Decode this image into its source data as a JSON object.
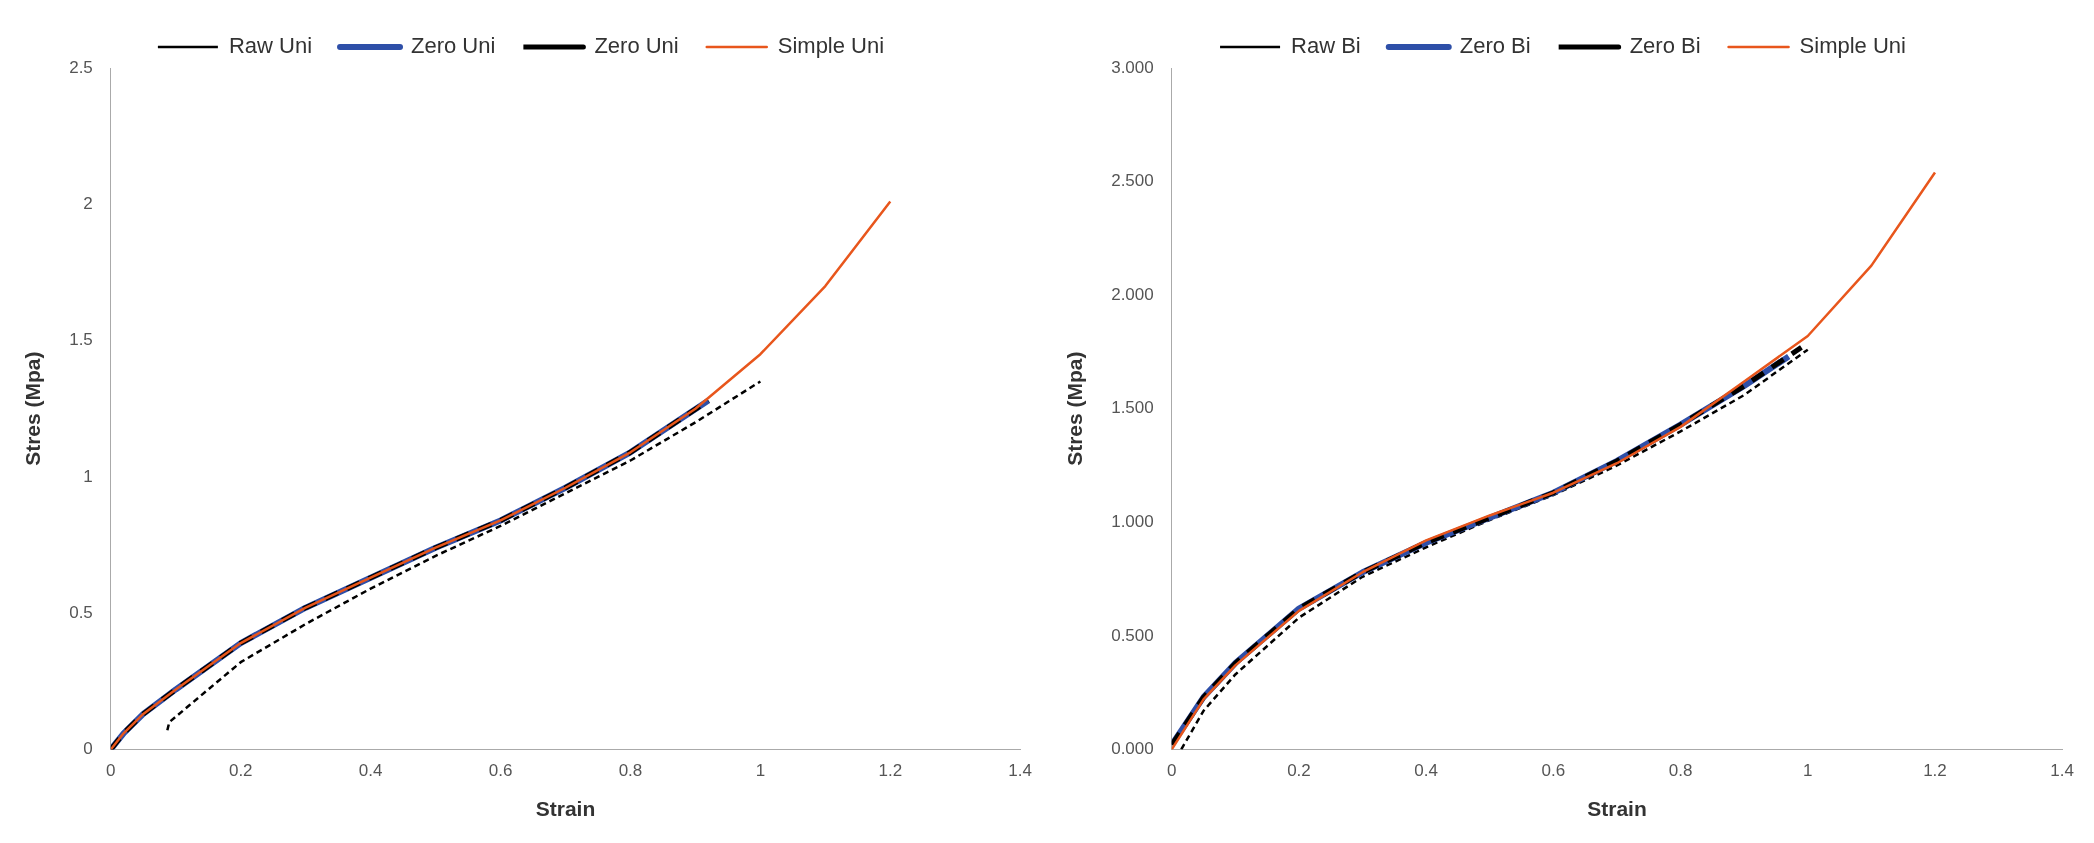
{
  "chart_data": [
    {
      "type": "line",
      "xlabel": "Strain",
      "ylabel": "Stres (Mpa)",
      "xlim": [
        0,
        1.4
      ],
      "xticks": [
        0,
        0.2,
        0.4,
        0.6,
        0.8,
        1,
        1.2,
        1.4
      ],
      "ylim": [
        0,
        2.5
      ],
      "yticks": [
        0,
        0.5,
        1,
        1.5,
        2,
        2.5
      ],
      "grid": false,
      "legend": "top",
      "marker": "none",
      "series": [
        {
          "name": "Raw Uni",
          "color": "#000000",
          "line_style": "dotted",
          "x": [
            0.087,
            0.09,
            0.12,
            0.2,
            0.3,
            0.4,
            0.5,
            0.6,
            0.7,
            0.8,
            0.9,
            1.0
          ],
          "values": [
            0.07,
            0.1,
            0.16,
            0.32,
            0.46,
            0.59,
            0.71,
            0.82,
            0.94,
            1.06,
            1.2,
            1.35
          ]
        },
        {
          "name": "Zero Uni",
          "color": "#2e4fa8",
          "line_style": "solid",
          "x": [
            0,
            0.02,
            0.05,
            0.1,
            0.2,
            0.3,
            0.4,
            0.5,
            0.6,
            0.7,
            0.8,
            0.92
          ],
          "values": [
            0,
            0.06,
            0.13,
            0.22,
            0.39,
            0.52,
            0.63,
            0.74,
            0.84,
            0.96,
            1.09,
            1.28
          ]
        },
        {
          "name": "Zero Uni",
          "color": "#000000",
          "line_style": "dashed",
          "x": [
            0,
            0.02,
            0.05,
            0.1,
            0.2,
            0.3,
            0.4,
            0.5,
            0.6,
            0.7,
            0.8,
            0.92
          ],
          "values": [
            0,
            0.06,
            0.13,
            0.22,
            0.39,
            0.52,
            0.63,
            0.74,
            0.84,
            0.96,
            1.09,
            1.28
          ]
        },
        {
          "name": "Simple Uni",
          "color": "#e8561c",
          "line_style": "solid",
          "x": [
            0,
            0.02,
            0.05,
            0.1,
            0.2,
            0.3,
            0.4,
            0.5,
            0.6,
            0.7,
            0.8,
            0.9,
            1.0,
            1.1,
            1.2
          ],
          "values": [
            0,
            0.06,
            0.13,
            0.22,
            0.39,
            0.52,
            0.63,
            0.74,
            0.84,
            0.96,
            1.09,
            1.25,
            1.45,
            1.7,
            2.01
          ]
        }
      ]
    },
    {
      "type": "line",
      "xlabel": "Strain",
      "ylabel": "Stres (Mpa)",
      "xlim": [
        0,
        1.4
      ],
      "xticks": [
        0,
        0.2,
        0.4,
        0.6,
        0.8,
        1,
        1.2,
        1.4
      ],
      "ylim": [
        0,
        3
      ],
      "yticks": [
        {
          "value": 0,
          "label": "0.000"
        },
        {
          "value": 0.5,
          "label": "0.500"
        },
        {
          "value": 1,
          "label": "1.000"
        },
        {
          "value": 1.5,
          "label": "1.500"
        },
        {
          "value": 2,
          "label": "2.000"
        },
        {
          "value": 2.5,
          "label": "2.500"
        },
        {
          "value": 3,
          "label": "3.000"
        }
      ],
      "grid": false,
      "legend": "top",
      "marker": "none",
      "series": [
        {
          "name": "Raw Bi",
          "color": "#000000",
          "line_style": "dotted",
          "x": [
            0.015,
            0.05,
            0.1,
            0.2,
            0.3,
            0.4,
            0.5,
            0.6,
            0.7,
            0.8,
            0.9,
            1.0
          ],
          "values": [
            0,
            0.17,
            0.33,
            0.58,
            0.76,
            0.89,
            1.01,
            1.12,
            1.25,
            1.4,
            1.56,
            1.76
          ]
        },
        {
          "name": "Zero Bi",
          "color": "#2e4fa8",
          "line_style": "solid",
          "x": [
            0,
            0.05,
            0.1,
            0.2,
            0.3,
            0.4,
            0.5,
            0.6,
            0.7,
            0.8,
            0.9,
            0.97
          ],
          "values": [
            0.02,
            0.23,
            0.38,
            0.62,
            0.78,
            0.91,
            1.02,
            1.13,
            1.27,
            1.43,
            1.6,
            1.73
          ]
        },
        {
          "name": "Zero Bi",
          "color": "#000000",
          "line_style": "dashed",
          "x": [
            0,
            0.05,
            0.1,
            0.2,
            0.3,
            0.4,
            0.5,
            0.6,
            0.7,
            0.8,
            0.9,
            0.99
          ],
          "values": [
            0.02,
            0.23,
            0.38,
            0.62,
            0.78,
            0.91,
            1.02,
            1.13,
            1.27,
            1.43,
            1.6,
            1.77
          ]
        },
        {
          "name": "Simple Uni",
          "color": "#e8561c",
          "line_style": "solid",
          "x": [
            0,
            0.05,
            0.1,
            0.2,
            0.3,
            0.4,
            0.5,
            0.6,
            0.7,
            0.8,
            0.9,
            1.0,
            1.1,
            1.2
          ],
          "values": [
            0,
            0.22,
            0.37,
            0.61,
            0.78,
            0.92,
            1.03,
            1.13,
            1.26,
            1.42,
            1.62,
            1.82,
            2.13,
            2.54
          ]
        }
      ]
    }
  ]
}
